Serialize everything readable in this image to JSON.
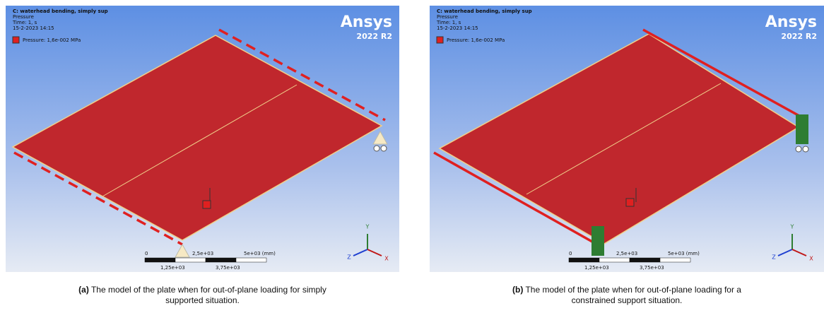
{
  "panels": [
    {
      "title": "C: waterhead bending, simply sup",
      "result": "Pressure",
      "time": "Time: 1, s",
      "date": "15-2-2023 14:15",
      "legend": "Pressure: 1,6e-002 MPa",
      "brand": "Ansys",
      "version": "2022 R2",
      "scale_top": [
        "0",
        "2,5e+03",
        "5e+03 (mm)"
      ],
      "scale_bottom": [
        "1,25e+03",
        "3,75e+03"
      ],
      "axes": [
        "Y",
        "Z",
        "X"
      ],
      "caption": {
        "label": "(a)",
        "lines": [
          " The model of the plate when for out-of-plane loading for simply",
          "supported situation."
        ]
      }
    },
    {
      "title": "C: waterhead bending, simply sup",
      "result": "Pressure",
      "time": "Time: 1, s",
      "date": "15-2-2023 14:15",
      "legend": "Pressure: 1,6e-002 MPa",
      "brand": "Ansys",
      "version": "2022 R2",
      "scale_top": [
        "0",
        "2,5e+03",
        "5e+03 (mm)"
      ],
      "scale_bottom": [
        "1,25e+03",
        "3,75e+03"
      ],
      "axes": [
        "Y",
        "Z",
        "X"
      ],
      "caption": {
        "label": "(b)",
        "lines": [
          " The model of the plate when for out-of-plane loading for a",
          "constrained support situation."
        ]
      }
    }
  ]
}
